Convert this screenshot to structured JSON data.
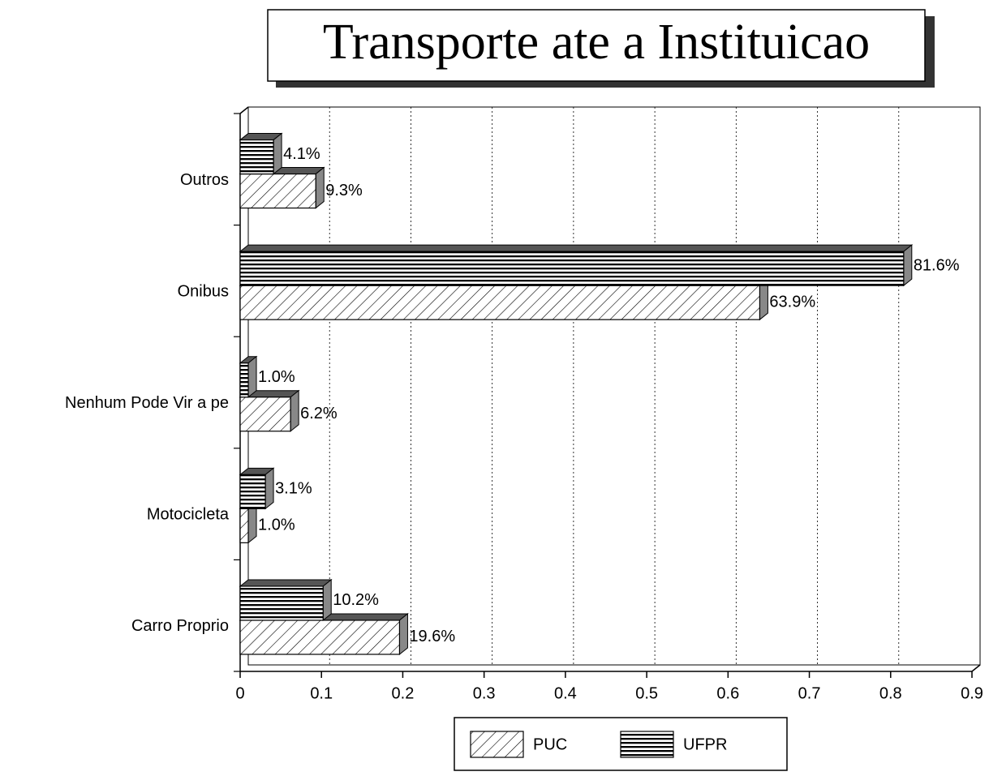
{
  "chart_data": {
    "type": "bar",
    "orientation": "horizontal",
    "title": "Transporte ate a Instituicao",
    "categories": [
      "Outros",
      "Onibus",
      "Nenhum Pode Vir a pe",
      "Motocicleta",
      "Carro Proprio"
    ],
    "series": [
      {
        "name": "PUC",
        "color": "#000000",
        "pattern": "diagonal",
        "values": [
          0.093,
          0.639,
          0.062,
          0.01,
          0.196
        ],
        "value_labels": [
          "9.3%",
          "63.9%",
          "6.2%",
          "1.0%",
          "19.6%"
        ]
      },
      {
        "name": "UFPR",
        "color": "#000000",
        "pattern": "horizontal",
        "values": [
          0.041,
          0.816,
          0.01,
          0.031,
          0.102
        ],
        "value_labels": [
          "4.1%",
          "81.6%",
          "1.0%",
          "3.1%",
          "10.2%"
        ]
      }
    ],
    "xlim": [
      0,
      0.9
    ],
    "xticks": [
      0,
      0.1,
      0.2,
      0.3,
      0.4,
      0.5,
      0.6,
      0.7,
      0.8,
      0.9
    ],
    "grid": true,
    "legend": "bottom"
  }
}
